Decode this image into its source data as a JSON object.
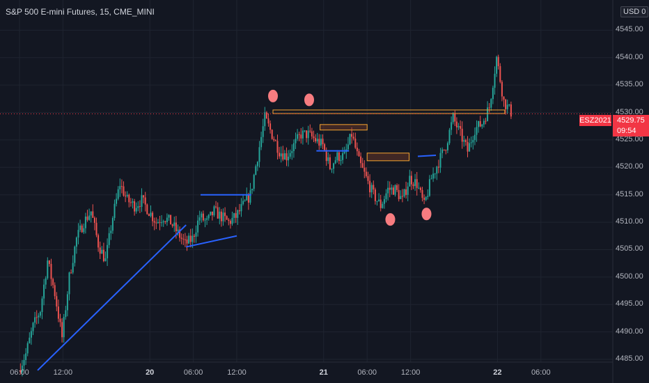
{
  "header": {
    "title": "S&P 500 E-mini Futures, 15, CME_MINI",
    "currency": "USD",
    "currency_suffix": "0"
  },
  "price_tag": {
    "symbol": "ESZ2021",
    "price": "4529.75",
    "timer": "09:54"
  },
  "colors": {
    "background": "#131722",
    "up": "#26a69a",
    "down": "#ef5350",
    "grid": "#1f2430",
    "trendline": "#2962ff",
    "resistance": "#f7a530",
    "marker": "#f77c80",
    "price_line": "#f23645"
  },
  "chart_data": {
    "type": "candlestick",
    "y_ticks": [
      "4485.00",
      "4490.00",
      "4495.00",
      "4500.00",
      "4505.00",
      "4510.00",
      "4515.00",
      "4520.00",
      "4525.00",
      "4530.00",
      "4535.00",
      "4540.00",
      "4545.00"
    ],
    "ylim": [
      4484.5,
      4550.5
    ],
    "x_labels": [
      {
        "t": 0,
        "label": "06:00",
        "bold": false
      },
      {
        "t": 6,
        "label": "12:00",
        "bold": false
      },
      {
        "t": 18,
        "label": "20",
        "bold": true
      },
      {
        "t": 24,
        "label": "06:00",
        "bold": false
      },
      {
        "t": 30,
        "label": "12:00",
        "bold": false
      },
      {
        "t": 42,
        "label": "21",
        "bold": true
      },
      {
        "t": 48,
        "label": "06:00",
        "bold": false
      },
      {
        "t": 54,
        "label": "12:00",
        "bold": false
      },
      {
        "t": 66,
        "label": "22",
        "bold": true
      },
      {
        "t": 72,
        "label": "06:00",
        "bold": false
      }
    ],
    "last_price": 4529.75,
    "series_points": [
      [
        0,
        4483
      ],
      [
        1,
        4486
      ],
      [
        2,
        4491
      ],
      [
        3,
        4494
      ],
      [
        4,
        4503
      ],
      [
        5,
        4497
      ],
      [
        6,
        4489
      ],
      [
        7,
        4500
      ],
      [
        8,
        4507
      ],
      [
        9,
        4510
      ],
      [
        10,
        4512
      ],
      [
        11,
        4506
      ],
      [
        12,
        4503
      ],
      [
        13,
        4511
      ],
      [
        14,
        4517
      ],
      [
        15,
        4514
      ],
      [
        16,
        4513
      ],
      [
        17,
        4514
      ],
      [
        18,
        4512
      ],
      [
        19,
        4510
      ],
      [
        20,
        4511
      ],
      [
        21,
        4510
      ],
      [
        22,
        4508
      ],
      [
        23,
        4506
      ],
      [
        24,
        4507
      ],
      [
        25,
        4511
      ],
      [
        26,
        4510
      ],
      [
        27,
        4512
      ],
      [
        28,
        4511
      ],
      [
        29,
        4510
      ],
      [
        30,
        4511
      ],
      [
        31,
        4513
      ],
      [
        32,
        4515
      ],
      [
        33,
        4522
      ],
      [
        34,
        4529
      ],
      [
        35,
        4526
      ],
      [
        36,
        4523
      ],
      [
        37,
        4522
      ],
      [
        38,
        4524
      ],
      [
        39,
        4526
      ],
      [
        40,
        4526
      ],
      [
        41,
        4525
      ],
      [
        42,
        4524
      ],
      [
        43,
        4520
      ],
      [
        44,
        4522
      ],
      [
        45,
        4522
      ],
      [
        46,
        4526
      ],
      [
        47,
        4521
      ],
      [
        48,
        4518
      ],
      [
        49,
        4515
      ],
      [
        50,
        4513
      ],
      [
        51,
        4516
      ],
      [
        52,
        4516
      ],
      [
        53,
        4514
      ],
      [
        54,
        4518
      ],
      [
        55,
        4517
      ],
      [
        56,
        4513
      ],
      [
        57,
        4518
      ],
      [
        58,
        4521
      ],
      [
        59,
        4524
      ],
      [
        60,
        4529
      ],
      [
        61,
        4526
      ],
      [
        62,
        4523
      ],
      [
        63,
        4527
      ],
      [
        64,
        4528
      ],
      [
        65,
        4531
      ],
      [
        66,
        4540
      ],
      [
        67,
        4532
      ],
      [
        68,
        4530
      ]
    ],
    "annotations": {
      "trendlines": [
        {
          "from": [
            2.5,
            4483
          ],
          "to": [
            23,
            4509.5
          ]
        },
        {
          "from": [
            23,
            4505.5
          ],
          "to": [
            30,
            4507.5
          ]
        },
        {
          "from": [
            25,
            4515
          ],
          "to": [
            32,
            4515
          ]
        },
        {
          "from": [
            41,
            4523
          ],
          "to": [
            45.5,
            4523
          ]
        },
        {
          "from": [
            55,
            4522
          ],
          "to": [
            57.5,
            4522.2
          ]
        }
      ],
      "resistance_zone": {
        "t_from": 35,
        "t_to": 67,
        "y_low": 4529.8,
        "y_high": 4530.2
      },
      "zones": [
        {
          "t_from": 41.5,
          "t_to": 48,
          "y_low": 4526.8,
          "y_high": 4527.8
        },
        {
          "t_from": 48,
          "t_to": 53.8,
          "y_low": 4521.2,
          "y_high": 4522.6
        }
      ],
      "markers": [
        [
          35,
          4533
        ],
        [
          40,
          4532.3
        ],
        [
          51.2,
          4510.5
        ],
        [
          56.2,
          4511.5
        ]
      ]
    }
  }
}
